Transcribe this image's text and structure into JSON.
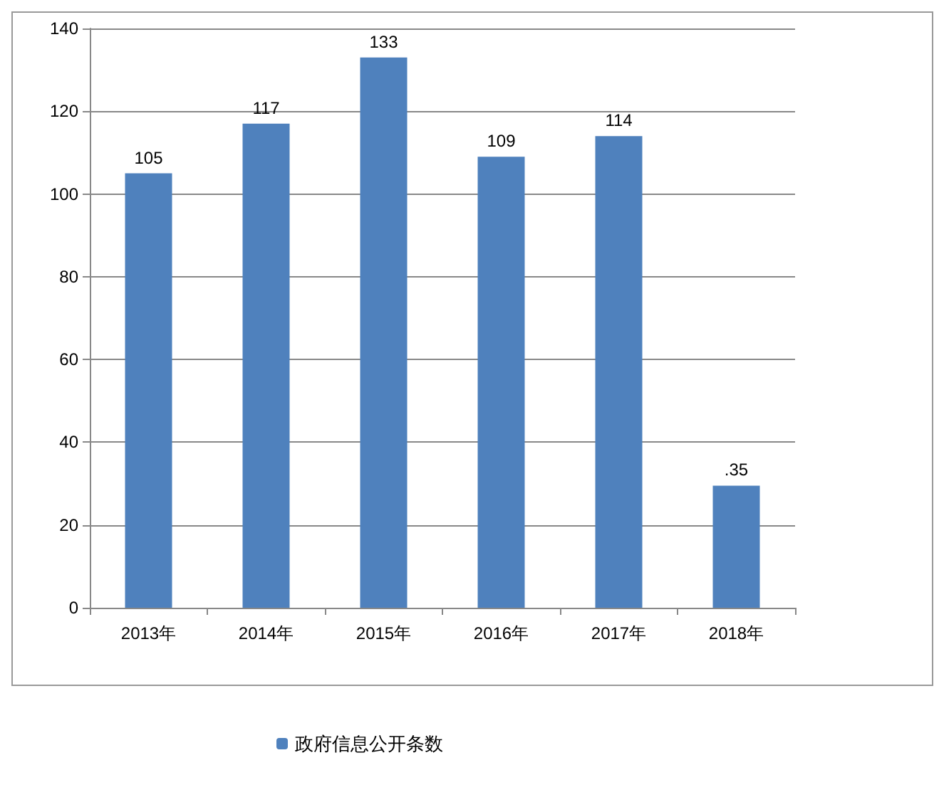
{
  "chart_data": {
    "type": "bar",
    "categories": [
      "2013年",
      "2014年",
      "2015年",
      "2016年",
      "2017年",
      "2018年"
    ],
    "series": [
      {
        "name": "政府信息公开条数",
        "color": "#4f81bd",
        "values": [
          105,
          117,
          133,
          109,
          114,
          29.5
        ],
        "value_labels": [
          "105",
          "117",
          "133",
          "109",
          "114",
          null
        ]
      }
    ],
    "annotations": [
      {
        "text": ".35",
        "x": "2018年",
        "y": 29.5
      }
    ],
    "ylim": [
      0,
      140
    ],
    "yticks": [
      0,
      20,
      40,
      60,
      80,
      100,
      120,
      140
    ],
    "grid": "y",
    "legend": "bottom"
  }
}
